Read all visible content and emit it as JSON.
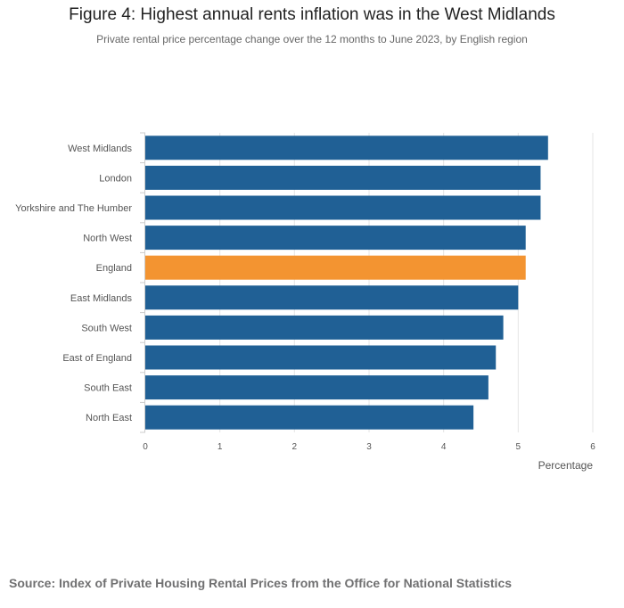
{
  "header": {
    "title": "Figure 4: Highest annual rents inflation was in the West Midlands",
    "subtitle": "Private rental price percentage change over the 12 months to June 2023, by English region"
  },
  "footer": {
    "source": "Source: Index of Private Housing Rental Prices from the Office for National Statistics"
  },
  "colors": {
    "bar": "#206095",
    "highlight": "#f39431",
    "grid": "#e5e5e5"
  },
  "chart_data": {
    "type": "bar",
    "orientation": "horizontal",
    "title": "Figure 4: Highest annual rents inflation was in the West Midlands",
    "subtitle": "Private rental price percentage change over the 12 months to June 2023, by English region",
    "categories": [
      "West Midlands",
      "London",
      "Yorkshire and The Humber",
      "North West",
      "England",
      "East Midlands",
      "South West",
      "East of England",
      "South East",
      "North East"
    ],
    "values": [
      5.4,
      5.3,
      5.3,
      5.1,
      5.1,
      5.0,
      4.8,
      4.7,
      4.6,
      4.4
    ],
    "highlight": "England",
    "xlabel": "Percentage",
    "ylabel": "",
    "xlim": [
      0,
      6
    ],
    "xticks": [
      "0",
      "1",
      "2",
      "3",
      "4",
      "5",
      "6"
    ],
    "grid": true
  }
}
